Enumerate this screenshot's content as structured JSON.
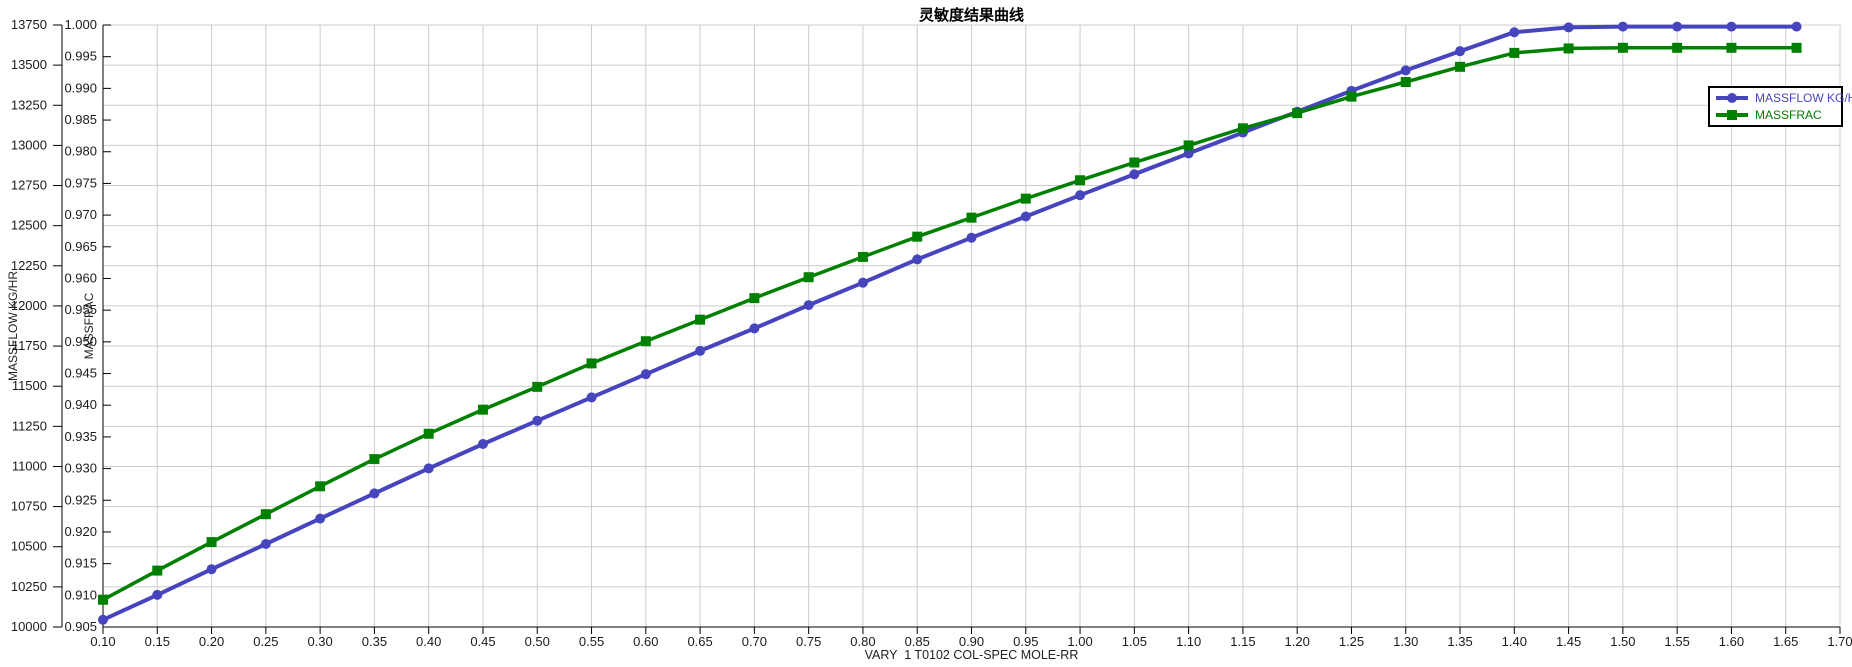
{
  "title": "灵敏度结果曲线",
  "chart_data": {
    "type": "line",
    "title": "灵敏度结果曲线",
    "grid": true,
    "x_axis": {
      "label": "VARY  1 T0102 COL-SPEC MOLE-RR",
      "min": 0.1,
      "max": 1.7,
      "tick_step": 0.05,
      "decimals": 2
    },
    "y_axes": [
      {
        "id": "massflow",
        "label": "MASSFLOW KG/HR",
        "min": 10000,
        "max": 13750,
        "tick_step": 250,
        "decimals": 0
      },
      {
        "id": "massfrac",
        "label": "MASSFRAC",
        "min": 0.905,
        "max": 1.0,
        "tick_step": 0.005,
        "decimals": 3
      }
    ],
    "x": [
      0.1,
      0.15,
      0.2,
      0.25,
      0.3,
      0.35,
      0.4,
      0.45,
      0.5,
      0.55,
      0.6,
      0.65,
      0.7,
      0.75,
      0.8,
      0.85,
      0.9,
      0.95,
      1.0,
      1.05,
      1.1,
      1.15,
      1.2,
      1.25,
      1.3,
      1.35,
      1.4,
      1.45,
      1.5,
      1.55,
      1.6,
      1.66
    ],
    "series": [
      {
        "name": "MASSFLOW KG/HR",
        "y_axis": "massflow",
        "color": "#4745BE",
        "marker": "circle",
        "values": [
          10045,
          10200,
          10360,
          10517,
          10675,
          10832,
          10988,
          11140,
          11285,
          11430,
          11575,
          11720,
          11860,
          12005,
          12145,
          12290,
          12425,
          12557,
          12690,
          12820,
          12950,
          13080,
          13210,
          13340,
          13467,
          13587,
          13705,
          13735,
          13740,
          13740,
          13740,
          13740
        ]
      },
      {
        "name": "MASSFRAC",
        "y_axis": "massfrac",
        "color": "#008000",
        "marker": "square",
        "values": [
          0.9093,
          0.9139,
          0.9184,
          0.9228,
          0.9272,
          0.9315,
          0.9355,
          0.9393,
          0.9429,
          0.9466,
          0.9501,
          0.9535,
          0.9569,
          0.9602,
          0.9634,
          0.9666,
          0.9696,
          0.9726,
          0.9755,
          0.9783,
          0.981,
          0.9837,
          0.9861,
          0.9887,
          0.991,
          0.9934,
          0.9956,
          0.9963,
          0.9964,
          0.9964,
          0.9964,
          0.9964
        ]
      }
    ],
    "legend": {
      "position": "top-right",
      "items": [
        "MASSFLOW KG/HR",
        "MASSFRAC"
      ]
    },
    "colors": {
      "grid": "#cccccc",
      "axis": "#000000",
      "tick_label": "#1b1b1b"
    }
  }
}
